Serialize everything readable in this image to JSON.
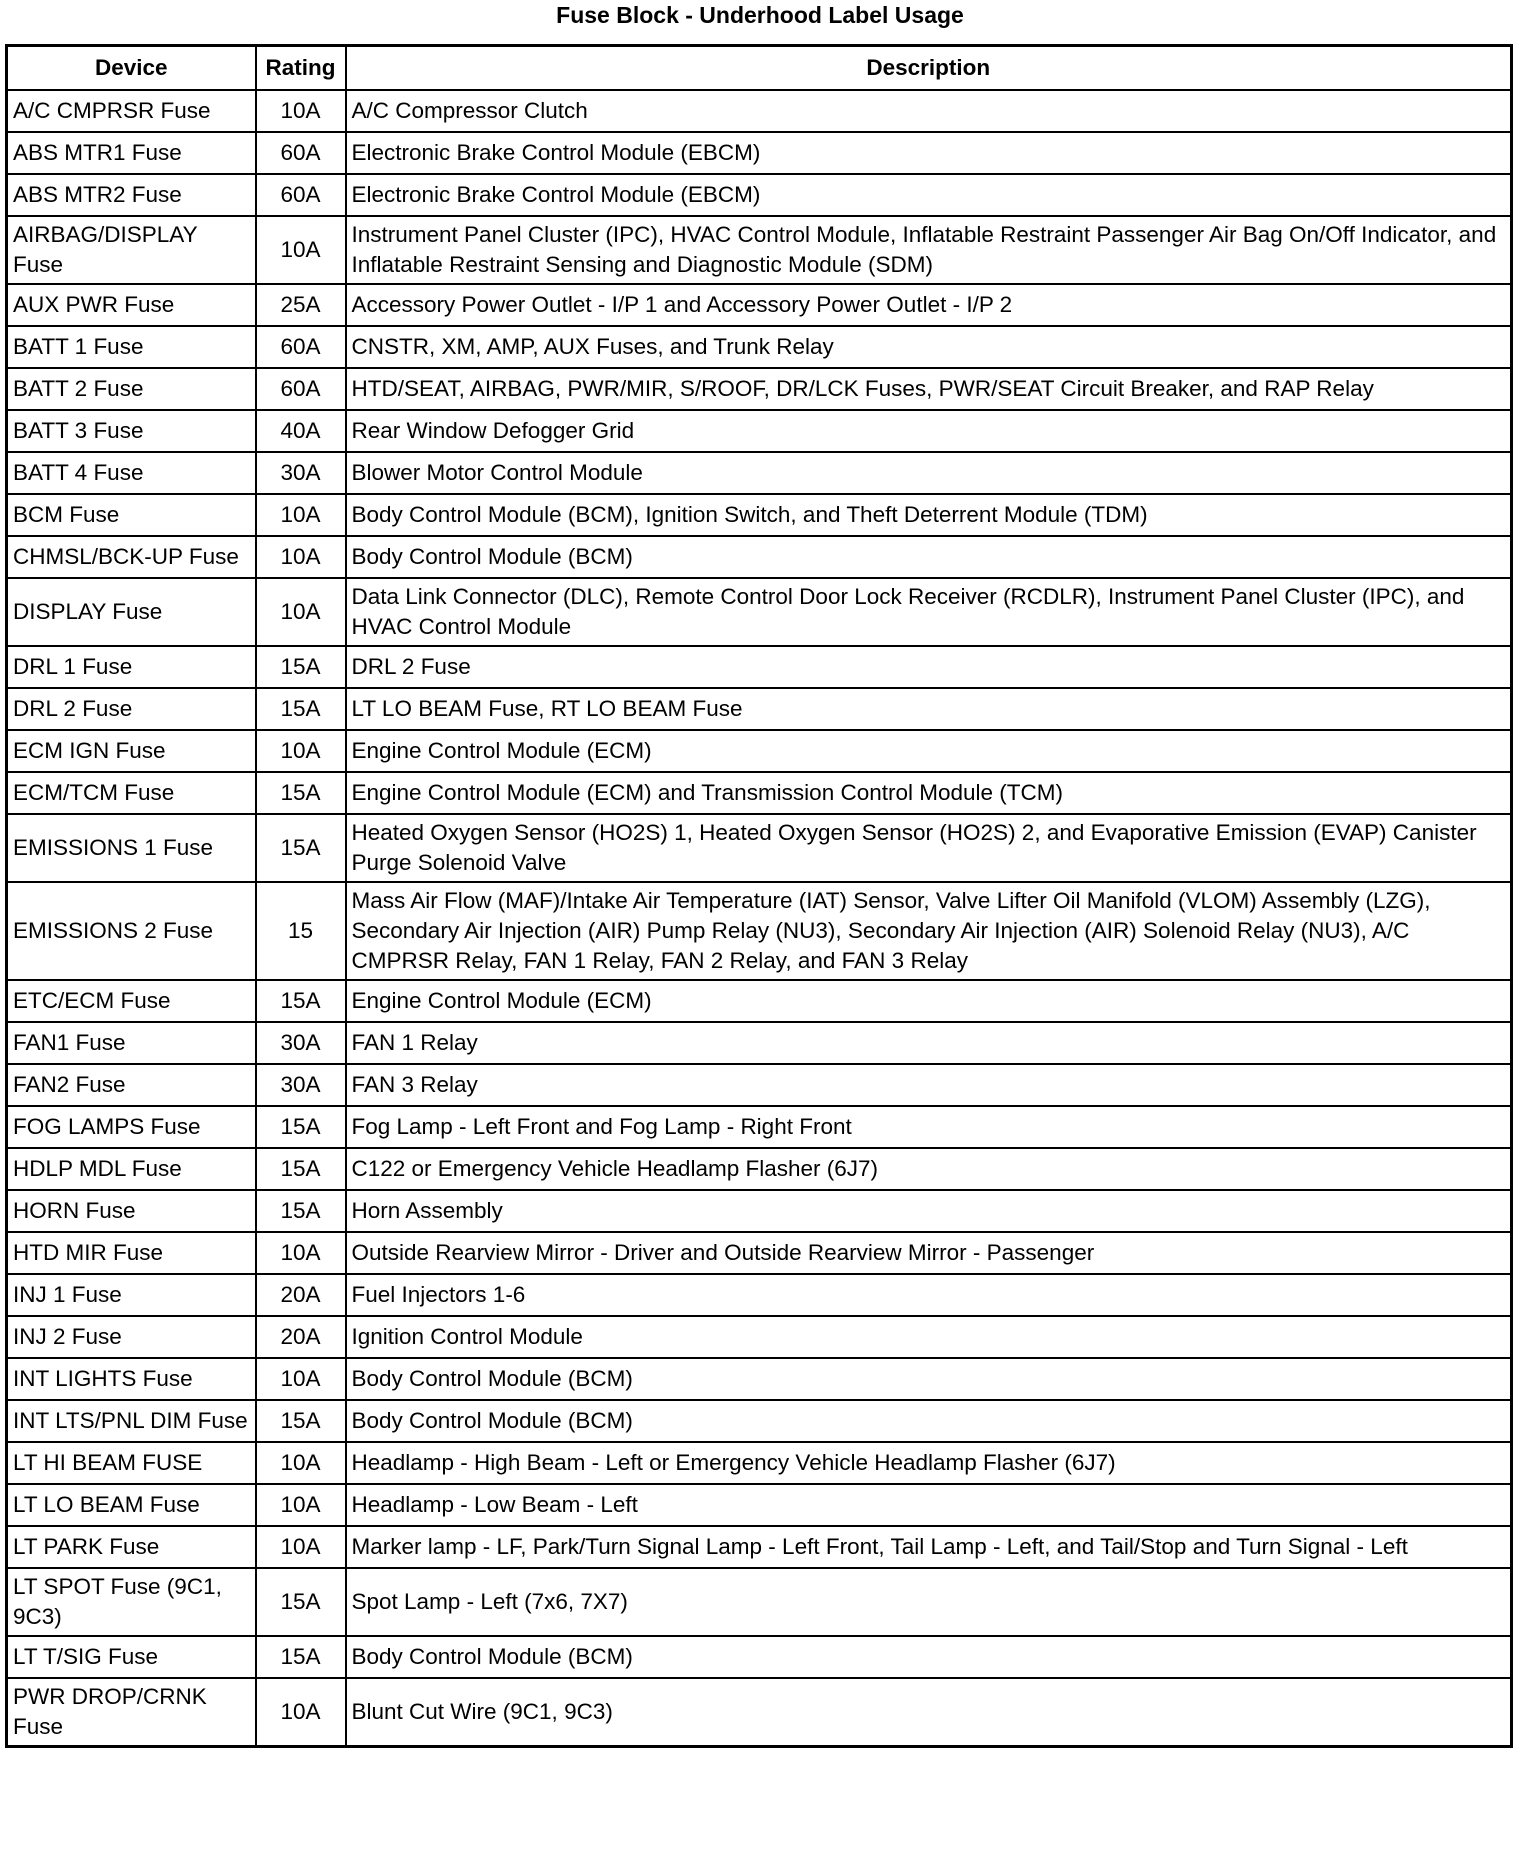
{
  "title": "Fuse Block - Underhood Label Usage",
  "headers": {
    "device": "Device",
    "rating": "Rating",
    "description": "Description"
  },
  "rows": [
    {
      "device": "A/C CMPRSR Fuse",
      "rating": "10A",
      "description": "A/C Compressor Clutch"
    },
    {
      "device": "ABS MTR1 Fuse",
      "rating": "60A",
      "description": "Electronic Brake Control Module (EBCM)"
    },
    {
      "device": "ABS MTR2 Fuse",
      "rating": "60A",
      "description": "Electronic Brake Control Module (EBCM)"
    },
    {
      "device": "AIRBAG/DISPLAY Fuse",
      "rating": "10A",
      "description": "Instrument Panel Cluster (IPC), HVAC Control Module, Inflatable Restraint Passenger Air Bag On/Off Indicator, and Inflatable Restraint Sensing and Diagnostic Module (SDM)"
    },
    {
      "device": "AUX PWR Fuse",
      "rating": "25A",
      "description": "Accessory Power Outlet - I/P 1 and Accessory Power Outlet - I/P 2"
    },
    {
      "device": "BATT 1 Fuse",
      "rating": "60A",
      "description": "CNSTR, XM, AMP, AUX Fuses, and Trunk Relay"
    },
    {
      "device": "BATT 2 Fuse",
      "rating": "60A",
      "description": "HTD/SEAT, AIRBAG, PWR/MIR, S/ROOF, DR/LCK Fuses, PWR/SEAT Circuit Breaker, and RAP Relay"
    },
    {
      "device": "BATT 3 Fuse",
      "rating": "40A",
      "description": "Rear Window Defogger Grid"
    },
    {
      "device": "BATT 4 Fuse",
      "rating": "30A",
      "description": "Blower Motor Control Module"
    },
    {
      "device": "BCM Fuse",
      "rating": "10A",
      "description": "Body Control Module (BCM), Ignition Switch, and Theft Deterrent Module (TDM)"
    },
    {
      "device": "CHMSL/BCK-UP Fuse",
      "rating": "10A",
      "description": "Body Control Module (BCM)"
    },
    {
      "device": "DISPLAY Fuse",
      "rating": "10A",
      "description": "Data Link Connector (DLC), Remote Control Door Lock Receiver (RCDLR), Instrument Panel Cluster (IPC), and HVAC Control Module"
    },
    {
      "device": "DRL 1 Fuse",
      "rating": "15A",
      "description": "DRL 2 Fuse"
    },
    {
      "device": "DRL 2 Fuse",
      "rating": "15A",
      "description": "LT LO BEAM Fuse, RT LO BEAM Fuse"
    },
    {
      "device": "ECM IGN Fuse",
      "rating": "10A",
      "description": "Engine Control Module (ECM)"
    },
    {
      "device": "ECM/TCM Fuse",
      "rating": "15A",
      "description": "Engine Control Module (ECM) and Transmission Control Module (TCM)"
    },
    {
      "device": "EMISSIONS 1 Fuse",
      "rating": "15A",
      "description": "Heated Oxygen Sensor (HO2S) 1, Heated Oxygen Sensor (HO2S) 2, and Evaporative Emission (EVAP) Canister Purge Solenoid Valve"
    },
    {
      "device": "EMISSIONS 2 Fuse",
      "rating": "15",
      "description": "Mass Air Flow (MAF)/Intake Air Temperature (IAT) Sensor, Valve Lifter Oil Manifold (VLOM) Assembly (LZG), Secondary Air Injection (AIR) Pump Relay (NU3), Secondary Air Injection (AIR) Solenoid Relay (NU3), A/C CMPRSR Relay, FAN 1 Relay, FAN 2 Relay, and FAN 3 Relay"
    },
    {
      "device": "ETC/ECM Fuse",
      "rating": "15A",
      "description": "Engine Control Module (ECM)"
    },
    {
      "device": "FAN1 Fuse",
      "rating": "30A",
      "description": "FAN 1 Relay"
    },
    {
      "device": "FAN2 Fuse",
      "rating": "30A",
      "description": "FAN 3 Relay"
    },
    {
      "device": "FOG LAMPS Fuse",
      "rating": "15A",
      "description": "Fog Lamp - Left Front and Fog Lamp - Right Front"
    },
    {
      "device": "HDLP MDL Fuse",
      "rating": "15A",
      "description": "C122 or Emergency Vehicle Headlamp Flasher (6J7)"
    },
    {
      "device": "HORN Fuse",
      "rating": "15A",
      "description": "Horn Assembly"
    },
    {
      "device": "HTD MIR Fuse",
      "rating": "10A",
      "description": "Outside Rearview Mirror - Driver and Outside Rearview Mirror - Passenger"
    },
    {
      "device": "INJ 1 Fuse",
      "rating": "20A",
      "description": "Fuel Injectors 1-6"
    },
    {
      "device": "INJ 2 Fuse",
      "rating": "20A",
      "description": "Ignition Control Module"
    },
    {
      "device": "INT LIGHTS Fuse",
      "rating": "10A",
      "description": "Body Control Module (BCM)"
    },
    {
      "device": "INT LTS/PNL DIM Fuse",
      "rating": "15A",
      "description": "Body Control Module (BCM)"
    },
    {
      "device": "LT HI BEAM FUSE",
      "rating": "10A",
      "description": "Headlamp - High Beam - Left or Emergency Vehicle Headlamp Flasher (6J7)"
    },
    {
      "device": "LT LO BEAM Fuse",
      "rating": "10A",
      "description": "Headlamp - Low Beam - Left"
    },
    {
      "device": "LT PARK Fuse",
      "rating": "10A",
      "description": "Marker lamp - LF, Park/Turn Signal Lamp - Left Front, Tail Lamp - Left, and Tail/Stop and Turn Signal - Left"
    },
    {
      "device": "LT SPOT Fuse (9C1, 9C3)",
      "rating": "15A",
      "description": "Spot Lamp - Left (7x6, 7X7)"
    },
    {
      "device": "LT T/SIG Fuse",
      "rating": "15A",
      "description": "Body Control Module (BCM)"
    },
    {
      "device": "PWR DROP/CRNK Fuse",
      "rating": "10A",
      "description": "Blunt Cut Wire (9C1, 9C3)"
    }
  ]
}
